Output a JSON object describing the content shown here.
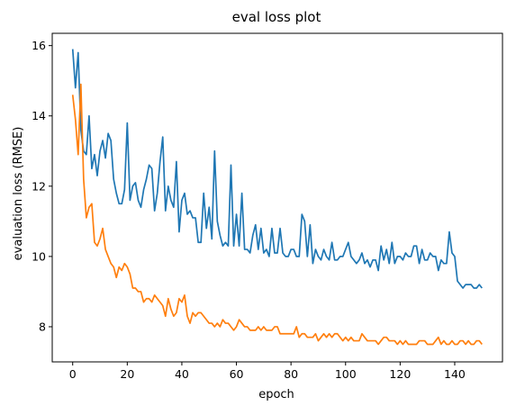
{
  "chart_data": {
    "type": "line",
    "title": "eval loss plot",
    "xlabel": "epoch",
    "ylabel": "evaluation loss (RMSE)",
    "xlim": [
      -7.5,
      157.5
    ],
    "ylim": [
      7.0,
      16.35
    ],
    "x_ticks": [
      0,
      20,
      40,
      60,
      80,
      100,
      120,
      140
    ],
    "y_ticks": [
      8,
      10,
      12,
      14,
      16
    ],
    "grid": false,
    "legend": "none",
    "series": [
      {
        "color": "#1f77b4",
        "x_start": 0,
        "values": [
          15.9,
          14.8,
          15.8,
          13.6,
          13.0,
          12.9,
          14.0,
          12.5,
          12.9,
          12.3,
          13.0,
          13.3,
          12.8,
          13.5,
          13.3,
          12.2,
          11.8,
          11.5,
          11.5,
          11.9,
          13.8,
          11.6,
          12.0,
          12.1,
          11.6,
          11.4,
          11.9,
          12.2,
          12.6,
          12.5,
          11.3,
          11.8,
          12.7,
          13.4,
          11.3,
          12.0,
          11.6,
          11.4,
          12.7,
          10.7,
          11.6,
          11.8,
          11.2,
          11.3,
          11.1,
          11.1,
          10.4,
          10.4,
          11.8,
          10.8,
          11.4,
          10.5,
          13.0,
          11.0,
          10.6,
          10.3,
          10.4,
          10.3,
          12.6,
          10.3,
          11.2,
          10.3,
          11.8,
          10.2,
          10.2,
          10.1,
          10.6,
          10.9,
          10.2,
          10.8,
          10.1,
          10.2,
          10.0,
          10.8,
          10.1,
          10.1,
          10.8,
          10.1,
          10.0,
          10.0,
          10.2,
          10.2,
          10.0,
          10.0,
          11.2,
          11.0,
          10.0,
          10.9,
          9.8,
          10.2,
          10.0,
          9.9,
          10.2,
          10.0,
          9.9,
          10.4,
          9.9,
          9.9,
          10.0,
          10.0,
          10.2,
          10.4,
          10.0,
          9.9,
          9.8,
          9.9,
          10.1,
          9.8,
          9.9,
          9.7,
          9.9,
          9.9,
          9.6,
          10.3,
          9.9,
          10.2,
          9.8,
          10.4,
          9.8,
          10.0,
          10.0,
          9.9,
          10.1,
          10.0,
          10.0,
          10.3,
          10.3,
          9.8,
          10.2,
          9.9,
          9.9,
          10.1,
          10.0,
          10.0,
          9.6,
          9.9,
          9.8,
          9.8,
          10.7,
          10.1,
          10.0,
          9.3,
          9.2,
          9.1,
          9.2,
          9.2,
          9.2,
          9.1,
          9.1,
          9.2,
          9.1
        ]
      },
      {
        "color": "#ff7f0e",
        "x_start": 0,
        "values": [
          14.6,
          13.9,
          12.9,
          14.9,
          12.2,
          11.1,
          11.4,
          11.5,
          10.4,
          10.3,
          10.5,
          10.8,
          10.2,
          10.0,
          9.8,
          9.7,
          9.4,
          9.7,
          9.6,
          9.8,
          9.7,
          9.5,
          9.1,
          9.1,
          9.0,
          9.0,
          8.7,
          8.8,
          8.8,
          8.7,
          8.9,
          8.8,
          8.7,
          8.6,
          8.3,
          8.8,
          8.5,
          8.3,
          8.4,
          8.8,
          8.7,
          8.9,
          8.3,
          8.1,
          8.4,
          8.3,
          8.4,
          8.4,
          8.3,
          8.2,
          8.1,
          8.1,
          8.0,
          8.1,
          8.0,
          8.2,
          8.1,
          8.1,
          8.0,
          7.9,
          8.0,
          8.2,
          8.1,
          8.0,
          8.0,
          7.9,
          7.9,
          7.9,
          8.0,
          7.9,
          8.0,
          7.9,
          7.9,
          7.9,
          8.0,
          8.0,
          7.8,
          7.8,
          7.8,
          7.8,
          7.8,
          7.8,
          8.0,
          7.7,
          7.8,
          7.8,
          7.7,
          7.7,
          7.7,
          7.8,
          7.6,
          7.7,
          7.8,
          7.7,
          7.8,
          7.7,
          7.8,
          7.8,
          7.7,
          7.6,
          7.7,
          7.6,
          7.7,
          7.6,
          7.6,
          7.6,
          7.8,
          7.7,
          7.6,
          7.6,
          7.6,
          7.6,
          7.5,
          7.6,
          7.7,
          7.7,
          7.6,
          7.6,
          7.6,
          7.5,
          7.6,
          7.5,
          7.6,
          7.5,
          7.5,
          7.5,
          7.5,
          7.6,
          7.6,
          7.6,
          7.5,
          7.5,
          7.5,
          7.6,
          7.7,
          7.5,
          7.6,
          7.5,
          7.5,
          7.6,
          7.5,
          7.5,
          7.6,
          7.6,
          7.5,
          7.6,
          7.5,
          7.5,
          7.6,
          7.6,
          7.5
        ]
      }
    ]
  }
}
